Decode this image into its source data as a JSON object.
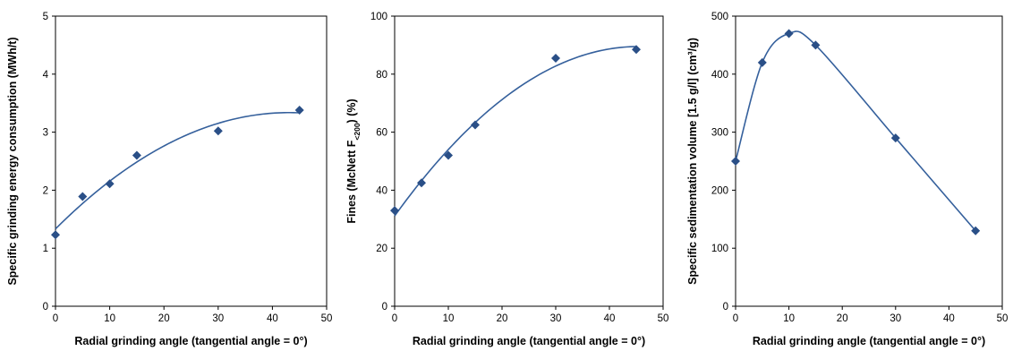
{
  "colors": {
    "marker": "#2a4f87",
    "curve": "#35609c",
    "axis": "#000000"
  },
  "chart_data": [
    {
      "type": "scatter",
      "title": "",
      "xlabel": "Radial grinding angle (tangential angle = 0°)",
      "ylabel": "Specific grinding energy consumption (MWh/t)",
      "ylabel_sub": "",
      "ylabel_after": "",
      "xlim": [
        0,
        50
      ],
      "ylim": [
        0,
        5
      ],
      "xticks": [
        0,
        10,
        20,
        30,
        40,
        50
      ],
      "yticks": [
        0,
        1,
        2,
        3,
        4,
        5
      ],
      "grid": false,
      "legend": "none",
      "series": [
        {
          "x": [
            0,
            5,
            10,
            15,
            30,
            45
          ],
          "y": [
            1.23,
            1.89,
            2.11,
            2.6,
            3.02,
            3.38
          ]
        }
      ],
      "trendline": {
        "type": "polynomial",
        "order": 2
      }
    },
    {
      "type": "scatter",
      "title": "",
      "xlabel": "Radial grinding angle (tangential angle = 0°)",
      "ylabel": "Fines (McNett F",
      "ylabel_sub": "<200",
      "ylabel_after": ") (%)",
      "xlim": [
        0,
        50
      ],
      "ylim": [
        0,
        100
      ],
      "xticks": [
        0,
        10,
        20,
        30,
        40,
        50
      ],
      "yticks": [
        0,
        20,
        40,
        60,
        80,
        100
      ],
      "grid": false,
      "legend": "none",
      "series": [
        {
          "x": [
            0,
            5,
            10,
            15,
            30,
            45
          ],
          "y": [
            33,
            42.5,
            52,
            62.5,
            85.5,
            88.5
          ]
        }
      ],
      "trendline": {
        "type": "polynomial",
        "order": 2
      }
    },
    {
      "type": "scatter",
      "title": "",
      "xlabel": "Radial grinding angle (tangential angle = 0°)",
      "ylabel": "Specific sedimentation volume [1.5 g/l] (cm³/g)",
      "ylabel_sub": "",
      "ylabel_after": "",
      "xlim": [
        0,
        50
      ],
      "ylim": [
        0,
        500
      ],
      "xticks": [
        0,
        10,
        20,
        30,
        40,
        50
      ],
      "yticks": [
        0,
        100,
        200,
        300,
        400,
        500
      ],
      "grid": false,
      "legend": "none",
      "series": [
        {
          "x": [
            0,
            5,
            10,
            15,
            30,
            45
          ],
          "y": [
            250,
            420,
            470,
            450,
            290,
            130
          ]
        }
      ],
      "trendline": {
        "type": "smooth"
      }
    }
  ]
}
